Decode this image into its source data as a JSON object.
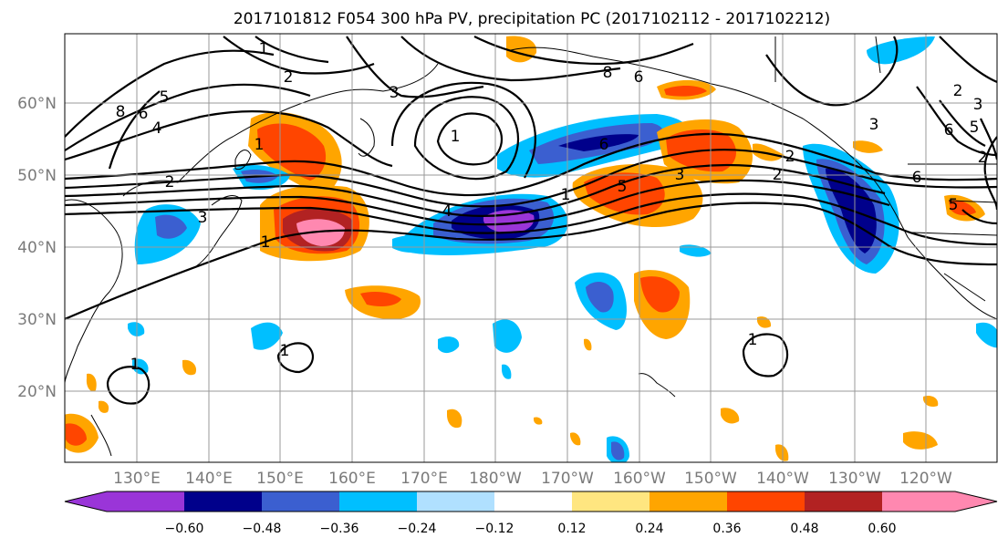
{
  "title": "2017101812 F054 300 hPa PV, precipitation PC (2017102112 - 2017102212)",
  "map": {
    "lat_labels": [
      "60°N",
      "50°N",
      "40°N",
      "30°N",
      "20°N"
    ],
    "lon_labels": [
      "130°E",
      "140°E",
      "150°E",
      "160°E",
      "170°E",
      "180°W",
      "170°W",
      "160°W",
      "150°W",
      "140°W",
      "130°W",
      "120°W"
    ],
    "contour_labels": [
      "1",
      "2",
      "3",
      "4",
      "5",
      "6",
      "8",
      "1",
      "2",
      "3",
      "4",
      "5",
      "6",
      "1",
      "2",
      "3",
      "1",
      "1",
      "1",
      "2",
      "3",
      "5",
      "6",
      "2",
      "6",
      "8",
      "6",
      "5",
      "2",
      "3",
      "1",
      "1"
    ]
  },
  "colorbar": {
    "tick_labels": [
      "−0.60",
      "−0.48",
      "−0.36",
      "−0.24",
      "−0.12",
      "0.12",
      "0.24",
      "0.36",
      "0.48",
      "0.60"
    ],
    "colors": [
      "#9a35d8",
      "#00008b",
      "#3b5fd0",
      "#00bfff",
      "#b0e0ff",
      "#ffffff",
      "#ffe680",
      "#ffa500",
      "#ff4500",
      "#b22222",
      "#ff88b0"
    ]
  }
}
